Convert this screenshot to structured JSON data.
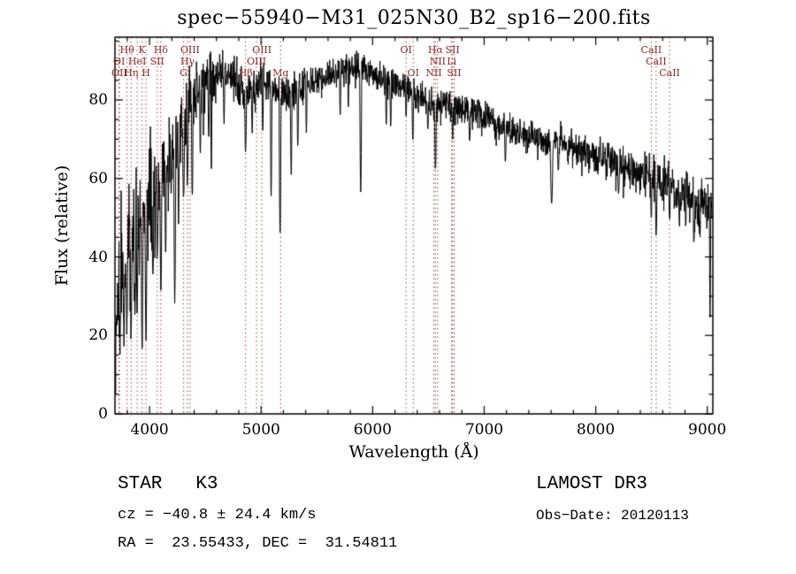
{
  "title": "spec−55940−M31_025N30_B2_sp16−200.fits",
  "annotations": {
    "class_label": "STAR   K3",
    "survey": "LAMOST DR3",
    "cz": "cz = −40.8 ± 24.4 km/s",
    "obs_date": "Obs−Date: 20120113",
    "coords": "RA =  23.55433, DEC =  31.54811"
  },
  "chart_data": {
    "type": "line",
    "title": "spec−55940−M31_025N30_B2_sp16−200.fits",
    "xlabel": "Wavelength (Å)",
    "ylabel": "Flux (relative)",
    "xlim": [
      3690,
      9050
    ],
    "ylim": [
      0,
      96
    ],
    "x_ticks": [
      4000,
      5000,
      6000,
      7000,
      8000,
      9000
    ],
    "y_ticks": [
      0,
      20,
      40,
      60,
      80
    ],
    "x_minor_step": 200,
    "y_minor_step": 5,
    "grid": false,
    "legend": "none",
    "line_color": "#000000",
    "marker_color": "#9a3a32",
    "sample_step": 2.5,
    "noise_seed": 42,
    "envelope": [
      [
        3690,
        3
      ],
      [
        3697,
        20
      ],
      [
        3705,
        32
      ],
      [
        3720,
        34
      ],
      [
        3740,
        36
      ],
      [
        3760,
        37
      ],
      [
        3780,
        39
      ],
      [
        3800,
        41
      ],
      [
        3820,
        43
      ],
      [
        3840,
        45
      ],
      [
        3860,
        46
      ],
      [
        3880,
        47
      ],
      [
        3900,
        49
      ],
      [
        3920,
        50
      ],
      [
        3950,
        52
      ],
      [
        3980,
        54
      ],
      [
        4010,
        56
      ],
      [
        4050,
        58
      ],
      [
        4090,
        60
      ],
      [
        4130,
        62
      ],
      [
        4170,
        64
      ],
      [
        4210,
        66
      ],
      [
        4250,
        70
      ],
      [
        4300,
        74
      ],
      [
        4350,
        79
      ],
      [
        4400,
        82
      ],
      [
        4450,
        84
      ],
      [
        4500,
        85
      ],
      [
        4550,
        86
      ],
      [
        4600,
        87
      ],
      [
        4650,
        88
      ],
      [
        4700,
        87
      ],
      [
        4750,
        86
      ],
      [
        4800,
        84
      ],
      [
        4850,
        82
      ],
      [
        4900,
        83
      ],
      [
        4950,
        84
      ],
      [
        5000,
        85
      ],
      [
        5050,
        84
      ],
      [
        5100,
        83
      ],
      [
        5150,
        82
      ],
      [
        5200,
        82
      ],
      [
        5250,
        81
      ],
      [
        5300,
        82
      ],
      [
        5350,
        83
      ],
      [
        5400,
        84
      ],
      [
        5500,
        85
      ],
      [
        5600,
        86
      ],
      [
        5700,
        87
      ],
      [
        5800,
        88
      ],
      [
        5900,
        88
      ],
      [
        6000,
        87
      ],
      [
        6100,
        85
      ],
      [
        6200,
        84
      ],
      [
        6300,
        83
      ],
      [
        6400,
        81
      ],
      [
        6500,
        80
      ],
      [
        6600,
        79
      ],
      [
        6700,
        78
      ],
      [
        6800,
        78
      ],
      [
        6900,
        77
      ],
      [
        7000,
        76
      ],
      [
        7100,
        74
      ],
      [
        7200,
        73
      ],
      [
        7300,
        72
      ],
      [
        7400,
        71
      ],
      [
        7500,
        70
      ],
      [
        7600,
        69
      ],
      [
        7700,
        69
      ],
      [
        7800,
        68
      ],
      [
        7900,
        67
      ],
      [
        8000,
        66
      ],
      [
        8100,
        65
      ],
      [
        8200,
        64
      ],
      [
        8300,
        63
      ],
      [
        8400,
        62
      ],
      [
        8500,
        61
      ],
      [
        8600,
        59
      ],
      [
        8700,
        58
      ],
      [
        8800,
        56
      ],
      [
        8850,
        55
      ],
      [
        8900,
        54
      ],
      [
        8950,
        54
      ],
      [
        9000,
        55
      ],
      [
        9030,
        54
      ]
    ],
    "noise_profile": [
      [
        3690,
        16
      ],
      [
        3750,
        14
      ],
      [
        3850,
        12
      ],
      [
        3950,
        11
      ],
      [
        4050,
        10
      ],
      [
        4150,
        9
      ],
      [
        4250,
        8
      ],
      [
        4350,
        6
      ],
      [
        4500,
        5
      ],
      [
        4700,
        4
      ],
      [
        5000,
        3.5
      ],
      [
        5500,
        3
      ],
      [
        6000,
        3
      ],
      [
        6500,
        2.8
      ],
      [
        7000,
        2.8
      ],
      [
        7500,
        3
      ],
      [
        8000,
        3.2
      ],
      [
        8500,
        3.8
      ],
      [
        8800,
        4.5
      ],
      [
        9040,
        5
      ]
    ],
    "absorption_dips": [
      [
        3735,
        15,
        7
      ],
      [
        3770,
        20,
        7
      ],
      [
        3797,
        22,
        8
      ],
      [
        3835,
        20,
        8
      ],
      [
        3870,
        24,
        8
      ],
      [
        3889,
        26,
        8
      ],
      [
        3933,
        17,
        9
      ],
      [
        3968,
        20,
        9
      ],
      [
        4030,
        35,
        8
      ],
      [
        4069,
        38,
        8
      ],
      [
        4101,
        33,
        9
      ],
      [
        4144,
        40,
        7
      ],
      [
        4226,
        28,
        9
      ],
      [
        4260,
        48,
        7
      ],
      [
        4305,
        55,
        10
      ],
      [
        4340,
        58,
        8
      ],
      [
        4383,
        55,
        8
      ],
      [
        4455,
        66,
        7
      ],
      [
        4531,
        70,
        7
      ],
      [
        4554,
        62,
        6
      ],
      [
        4668,
        74,
        7
      ],
      [
        4861,
        67,
        9
      ],
      [
        4920,
        72,
        7
      ],
      [
        5015,
        72,
        6
      ],
      [
        5090,
        55,
        7
      ],
      [
        5170,
        46,
        9
      ],
      [
        5270,
        62,
        8
      ],
      [
        5329,
        68,
        7
      ],
      [
        5406,
        72,
        6
      ],
      [
        5709,
        76,
        6
      ],
      [
        5782,
        78,
        5
      ],
      [
        5893,
        57,
        9
      ],
      [
        6122,
        74,
        6
      ],
      [
        6162,
        73,
        6
      ],
      [
        6300,
        75,
        5
      ],
      [
        6360,
        70,
        7
      ],
      [
        6495,
        72,
        6
      ],
      [
        6563,
        62,
        9
      ],
      [
        6717,
        70,
        6
      ],
      [
        6870,
        70,
        8
      ],
      [
        7190,
        64,
        8
      ],
      [
        7605,
        53,
        12
      ],
      [
        7665,
        62,
        8
      ],
      [
        8205,
        56,
        9
      ],
      [
        8327,
        58,
        6
      ],
      [
        8433,
        57,
        6
      ],
      [
        8498,
        50,
        7
      ],
      [
        8542,
        46,
        8
      ],
      [
        8598,
        54,
        5
      ],
      [
        8662,
        49,
        7
      ],
      [
        8750,
        48,
        6
      ],
      [
        8807,
        47,
        6
      ],
      [
        8880,
        44,
        7
      ],
      [
        8930,
        46,
        5
      ],
      [
        9025,
        24,
        6
      ]
    ],
    "line_markers": [
      {
        "wavelength": 3798,
        "label": "Hθ",
        "row": 1
      },
      {
        "wavelength": 3933,
        "label": "K",
        "row": 1
      },
      {
        "wavelength": 4101,
        "label": "Hδ",
        "row": 1
      },
      {
        "wavelength": 4363,
        "label": "OIII",
        "row": 1
      },
      {
        "wavelength": 5007,
        "label": "OIII",
        "row": 1
      },
      {
        "wavelength": 6300,
        "label": "OI",
        "row": 1
      },
      {
        "wavelength": 6563,
        "label": "Hα",
        "row": 1
      },
      {
        "wavelength": 6716,
        "label": "SII",
        "row": 1
      },
      {
        "wavelength": 8498,
        "label": "CaII",
        "row": 1
      },
      {
        "wavelength": 3727,
        "label": "OI",
        "row": 2
      },
      {
        "wavelength": 3889,
        "label": "HeI",
        "row": 2
      },
      {
        "wavelength": 4069,
        "label": "SII",
        "row": 2
      },
      {
        "wavelength": 4340,
        "label": "Hγ",
        "row": 2
      },
      {
        "wavelength": 4959,
        "label": "OIII",
        "row": 2
      },
      {
        "wavelength": 6583,
        "label": "NII",
        "row": 2
      },
      {
        "wavelength": 6708,
        "label": "Li",
        "row": 2
      },
      {
        "wavelength": 8542,
        "label": "CaII",
        "row": 2
      },
      {
        "wavelength": 3729,
        "label": "OII",
        "row": 3
      },
      {
        "wavelength": 3835,
        "label": "Hη",
        "row": 3
      },
      {
        "wavelength": 3968,
        "label": "H",
        "row": 3
      },
      {
        "wavelength": 4305,
        "label": "G",
        "row": 3
      },
      {
        "wavelength": 4861,
        "label": "Hβ",
        "row": 3
      },
      {
        "wavelength": 5175,
        "label": "Mg",
        "row": 3
      },
      {
        "wavelength": 6364,
        "label": "OI",
        "row": 3
      },
      {
        "wavelength": 6548,
        "label": "NII",
        "row": 3
      },
      {
        "wavelength": 6731,
        "label": "SII",
        "row": 3
      },
      {
        "wavelength": 8662,
        "label": "CaII",
        "row": 3
      }
    ]
  }
}
